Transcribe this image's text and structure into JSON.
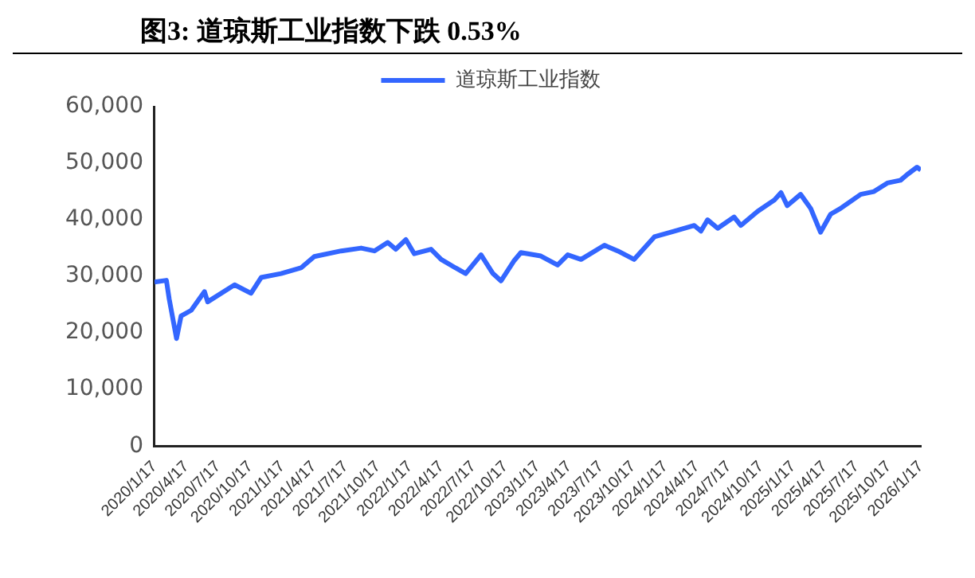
{
  "chart_data": {
    "type": "line",
    "title": "图3:  道琼斯工业指数下跌 0.53%",
    "legend": "top",
    "grid": false,
    "marker": "none",
    "line_style": "solid",
    "x": [
      "2020-01-17",
      "2020-02-20",
      "2020-02-28",
      "2020-03-20",
      "2020-04-02",
      "2020-05-01",
      "2020-06-08",
      "2020-06-17",
      "2020-09-02",
      "2020-10-19",
      "2020-11-17",
      "2021-01-13",
      "2021-03-11",
      "2021-04-18",
      "2021-07-04",
      "2021-08-30",
      "2021-10-07",
      "2021-11-14",
      "2021-12-07",
      "2022-01-05",
      "2022-01-29",
      "2022-03-18",
      "2022-04-16",
      "2022-05-27",
      "2022-06-25",
      "2022-08-08",
      "2022-09-11",
      "2022-10-04",
      "2022-11-11",
      "2022-11-30",
      "2023-01-26",
      "2023-03-15",
      "2023-04-13",
      "2023-05-21",
      "2023-07-27",
      "2023-09-03",
      "2023-10-20",
      "2023-12-17",
      "2024-02-12",
      "2024-04-09",
      "2024-04-28",
      "2024-05-17",
      "2024-06-15",
      "2024-08-01",
      "2024-08-20",
      "2024-10-07",
      "2024-11-24",
      "2024-12-13",
      "2024-12-31",
      "2025-02-07",
      "2025-03-08",
      "2025-04-05",
      "2025-05-04",
      "2025-06-01",
      "2025-07-29",
      "2025-09-05",
      "2025-10-13",
      "2025-11-20",
      "2025-12-09",
      "2026-01-06",
      "2026-01-17"
    ],
    "series": [
      {
        "name": "道琼斯工业指数",
        "color": "#3366ff",
        "values": [
          29000,
          29300,
          26000,
          19000,
          23000,
          24000,
          27300,
          25500,
          28500,
          27000,
          29800,
          30500,
          31500,
          33500,
          34500,
          35000,
          34500,
          36000,
          34800,
          36500,
          34000,
          34800,
          33000,
          31500,
          30500,
          33800,
          30500,
          29200,
          32800,
          34200,
          33600,
          32000,
          33800,
          33000,
          35500,
          34500,
          33000,
          37000,
          38000,
          39000,
          38000,
          40000,
          38500,
          40500,
          39000,
          41500,
          43500,
          44800,
          42500,
          44500,
          42000,
          37800,
          41000,
          42000,
          44500,
          45000,
          46500,
          47000,
          48000,
          49300,
          48800
        ]
      }
    ],
    "xlim": [
      "2020-01-17",
      "2026-01-17"
    ],
    "xticks": [
      {
        "value": "2020-01-17",
        "label": "2020/1/17"
      },
      {
        "value": "2020-04-17",
        "label": "2020/4/17"
      },
      {
        "value": "2020-07-17",
        "label": "2020/7/17"
      },
      {
        "value": "2020-10-17",
        "label": "2020/10/17"
      },
      {
        "value": "2021-01-17",
        "label": "2021/1/17"
      },
      {
        "value": "2021-04-17",
        "label": "2021/4/17"
      },
      {
        "value": "2021-07-17",
        "label": "2021/7/17"
      },
      {
        "value": "2021-10-17",
        "label": "2021/10/17"
      },
      {
        "value": "2022-01-17",
        "label": "2022/1/17"
      },
      {
        "value": "2022-04-17",
        "label": "2022/4/17"
      },
      {
        "value": "2022-07-17",
        "label": "2022/7/17"
      },
      {
        "value": "2022-10-17",
        "label": "2022/10/17"
      },
      {
        "value": "2023-01-17",
        "label": "2023/1/17"
      },
      {
        "value": "2023-04-17",
        "label": "2023/4/17"
      },
      {
        "value": "2023-07-17",
        "label": "2023/7/17"
      },
      {
        "value": "2023-10-17",
        "label": "2023/10/17"
      },
      {
        "value": "2024-01-17",
        "label": "2024/1/17"
      },
      {
        "value": "2024-04-17",
        "label": "2024/4/17"
      },
      {
        "value": "2024-07-17",
        "label": "2024/7/17"
      },
      {
        "value": "2024-10-17",
        "label": "2024/10/17"
      },
      {
        "value": "2025-01-17",
        "label": "2025/1/17"
      },
      {
        "value": "2025-04-17",
        "label": "2025/4/17"
      },
      {
        "value": "2025-07-17",
        "label": "2025/7/17"
      },
      {
        "value": "2025-10-17",
        "label": "2025/10/17"
      },
      {
        "value": "2026-01-17",
        "label": "2026/1/17"
      }
    ],
    "ylim": [
      0,
      60000
    ],
    "yticks": [
      {
        "value": 0,
        "label": "0"
      },
      {
        "value": 10000,
        "label": "10,000"
      },
      {
        "value": 20000,
        "label": "20,000"
      },
      {
        "value": 30000,
        "label": "30,000"
      },
      {
        "value": 40000,
        "label": "40,000"
      },
      {
        "value": 50000,
        "label": "50,000"
      },
      {
        "value": 60000,
        "label": "60,000"
      }
    ]
  }
}
